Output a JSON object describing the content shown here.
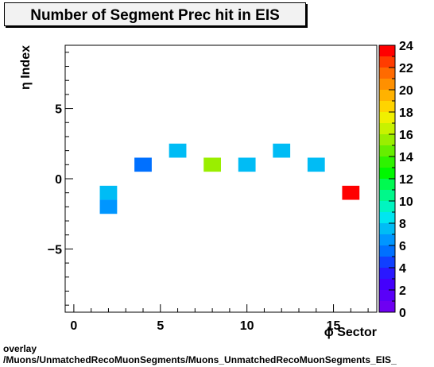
{
  "chart_data": {
    "type": "heatmap",
    "title": "Number of Segment Prec hit in EIS",
    "xlabel": "ϕ Sector",
    "ylabel": "η Index",
    "xlim": [
      -0.5,
      17.5
    ],
    "ylim": [
      -9.5,
      9.5
    ],
    "x_ticks": [
      0,
      5,
      10,
      15
    ],
    "y_ticks": [
      -5,
      0,
      5
    ],
    "z_range": [
      0,
      24
    ],
    "z_ticks": [
      0,
      2,
      4,
      6,
      8,
      10,
      12,
      14,
      16,
      18,
      20,
      22,
      24
    ],
    "cells": [
      {
        "x": 2,
        "y": -2,
        "z": 7
      },
      {
        "x": 2,
        "y": -1,
        "z": 8
      },
      {
        "x": 4,
        "y": 1,
        "z": 6
      },
      {
        "x": 6,
        "y": 2,
        "z": 8
      },
      {
        "x": 8,
        "y": 1,
        "z": 16
      },
      {
        "x": 10,
        "y": 1,
        "z": 8
      },
      {
        "x": 12,
        "y": 2,
        "z": 8
      },
      {
        "x": 14,
        "y": 1,
        "z": 8
      },
      {
        "x": 16,
        "y": -1,
        "z": 24
      }
    ]
  },
  "footer": {
    "line1": "overlay",
    "line2": "/Muons/UnmatchedRecoMuonSegments/Muons_UnmatchedRecoMuonSegments_EIS_"
  }
}
